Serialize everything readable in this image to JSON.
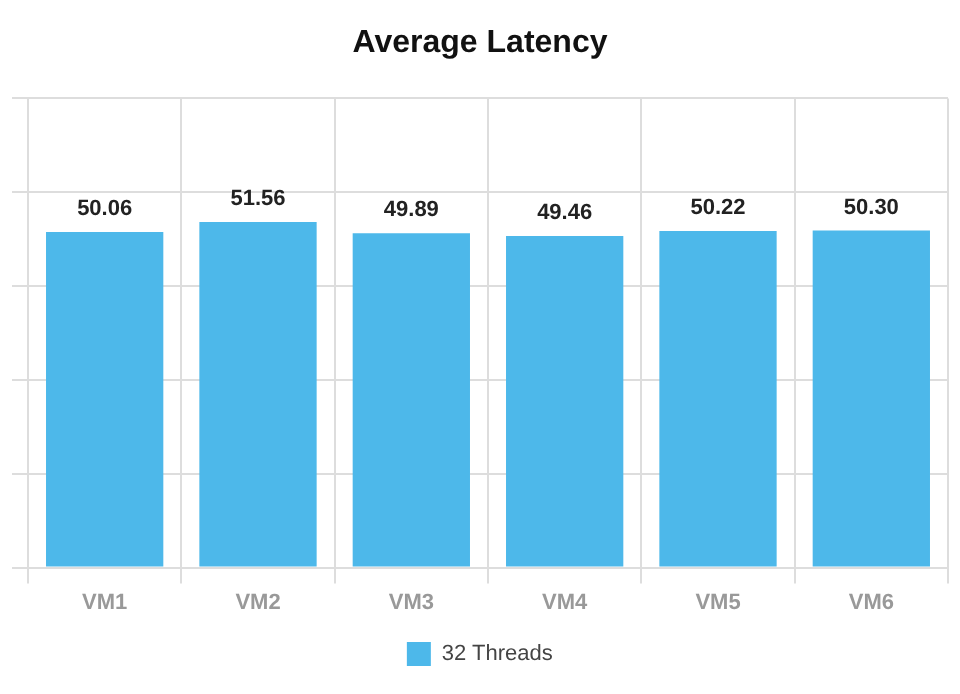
{
  "chart_data": {
    "type": "bar",
    "title": "Average Latency",
    "categories": [
      "VM1",
      "VM2",
      "VM3",
      "VM4",
      "VM5",
      "VM6"
    ],
    "series": [
      {
        "name": "32 Threads",
        "color": "#4db8ea",
        "values": [
          50.06,
          51.56,
          49.89,
          49.46,
          50.22,
          50.3
        ],
        "value_labels": [
          "50.06",
          "51.56",
          "49.89",
          "49.46",
          "50.22",
          "50.30"
        ]
      }
    ],
    "ylim": [
      0,
      70
    ],
    "yticks": [
      0,
      14,
      28,
      42,
      56,
      70
    ],
    "tick_labels": "x",
    "grid": true,
    "legend": "bottom"
  }
}
